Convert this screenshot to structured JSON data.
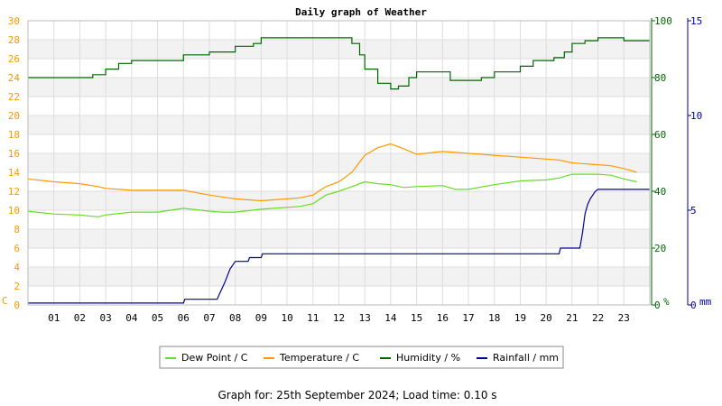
{
  "chart_data": {
    "type": "line",
    "title": "Daily graph of Weather",
    "footer": "Graph for: 25th September 2024; Load time: 0.10 s",
    "x_tick_labels": [
      "01",
      "02",
      "03",
      "04",
      "05",
      "06",
      "07",
      "08",
      "09",
      "10",
      "11",
      "12",
      "13",
      "14",
      "15",
      "16",
      "17",
      "18",
      "19",
      "20",
      "21",
      "22",
      "23"
    ],
    "xlim": [
      0,
      24
    ],
    "axes": {
      "left": {
        "label": "C",
        "color": "#ff9900",
        "ylim": [
          0,
          30
        ],
        "ticks": [
          0,
          2,
          4,
          6,
          8,
          10,
          12,
          14,
          16,
          18,
          20,
          22,
          24,
          26,
          28,
          30
        ]
      },
      "humidity": {
        "label": "%",
        "color": "#006600",
        "ylim": [
          0,
          100
        ],
        "ticks": [
          0,
          20,
          40,
          60,
          80,
          100
        ]
      },
      "rain": {
        "label": "mm",
        "color": "#000099",
        "ylim": [
          0,
          15
        ],
        "ticks": [
          0,
          5,
          10,
          15
        ]
      }
    },
    "legend": {
      "placement": "bottom-center"
    },
    "series": [
      {
        "name": "Dew Point / C",
        "axis": "left",
        "color": "#66dd22",
        "x": [
          0,
          1,
          2,
          2.7,
          3,
          4,
          5,
          6,
          7,
          7.5,
          8,
          9,
          10,
          10.5,
          11,
          11.5,
          12,
          12.5,
          13,
          13.5,
          14,
          14.5,
          15,
          16,
          16.5,
          17,
          18,
          19,
          20,
          20.5,
          21,
          22,
          22.5,
          23,
          23.5
        ],
        "y": [
          9.9,
          9.6,
          9.5,
          9.3,
          9.5,
          9.8,
          9.8,
          10.2,
          9.9,
          9.8,
          9.8,
          10.1,
          10.3,
          10.4,
          10.7,
          11.6,
          12.0,
          12.5,
          13.0,
          12.8,
          12.7,
          12.4,
          12.5,
          12.6,
          12.2,
          12.2,
          12.7,
          13.1,
          13.2,
          13.4,
          13.8,
          13.8,
          13.7,
          13.3,
          13.0
        ]
      },
      {
        "name": "Temperature / C",
        "axis": "left",
        "color": "#ff9900",
        "x": [
          0,
          1,
          2,
          2.7,
          3,
          4,
          5,
          6,
          7,
          7.5,
          8,
          9,
          10,
          10.5,
          11,
          11.5,
          12,
          12.5,
          13,
          13.5,
          14,
          14.5,
          15,
          16,
          16.5,
          17,
          18,
          19,
          20,
          20.5,
          21,
          22,
          22.5,
          23,
          23.5
        ],
        "y": [
          13.3,
          13.0,
          12.8,
          12.5,
          12.3,
          12.1,
          12.1,
          12.1,
          11.6,
          11.4,
          11.2,
          11.0,
          11.2,
          11.3,
          11.6,
          12.5,
          13.0,
          14.0,
          15.8,
          16.6,
          17.0,
          16.5,
          15.9,
          16.2,
          16.1,
          16.0,
          15.8,
          15.6,
          15.4,
          15.3,
          15.0,
          14.8,
          14.7,
          14.4,
          14.0
        ]
      },
      {
        "name": "Humidity / %",
        "axis": "humidity",
        "color": "#006600",
        "x": [
          0,
          1,
          2,
          2.5,
          3,
          3.5,
          4,
          5,
          5.7,
          6,
          7,
          7.5,
          8,
          8.7,
          9,
          10,
          10.5,
          11,
          11.5,
          12,
          12.5,
          12.8,
          13,
          13.5,
          14,
          14.3,
          14.7,
          15,
          15.5,
          16,
          16.3,
          16.7,
          17,
          17.5,
          18,
          19,
          19.5,
          20,
          20.3,
          20.7,
          21,
          21.5,
          22,
          22.5,
          23,
          24
        ],
        "y": [
          80,
          80,
          80,
          81,
          83,
          85,
          86,
          86,
          86,
          88,
          89,
          89,
          91,
          92,
          94,
          94,
          94,
          94,
          94,
          94,
          92,
          88,
          83,
          78,
          76,
          77,
          80,
          82,
          82,
          82,
          79,
          79,
          79,
          80,
          82,
          84,
          86,
          86,
          87,
          89,
          92,
          93,
          94,
          94,
          93,
          93
        ]
      },
      {
        "name": "Rainfall / mm",
        "axis": "rain",
        "color": "#000099",
        "x": [
          0,
          6,
          6.05,
          7.3,
          7.4,
          7.6,
          7.8,
          8.0,
          8.05,
          8.5,
          8.55,
          9.0,
          9.05,
          20.5,
          20.55,
          21.3,
          21.4,
          21.5,
          21.6,
          21.7,
          21.8,
          21.9,
          22.0,
          24
        ],
        "y": [
          0.1,
          0.1,
          0.3,
          0.3,
          0.6,
          1.2,
          1.9,
          2.3,
          2.3,
          2.3,
          2.5,
          2.5,
          2.7,
          2.7,
          3.0,
          3.0,
          3.8,
          4.8,
          5.3,
          5.6,
          5.8,
          6.0,
          6.1,
          6.1
        ]
      }
    ]
  }
}
